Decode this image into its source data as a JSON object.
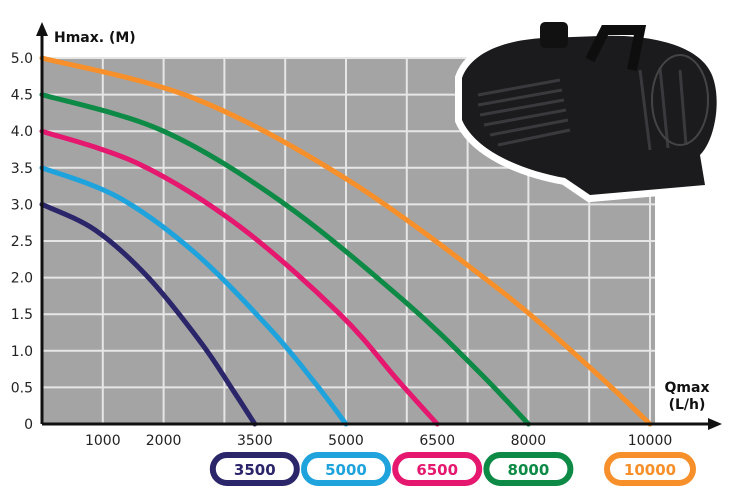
{
  "chart_data": {
    "type": "line",
    "title": "",
    "xlabel": "Qmax\n(L/h)",
    "xlabel_lines": [
      "Qmax",
      "(L/h)"
    ],
    "ylabel": "Hmax. (M)",
    "xlim": [
      0,
      10000
    ],
    "ylim": [
      0,
      5.0
    ],
    "grid": true,
    "background": "#a4a4a4",
    "x_ticks": [
      "1000",
      "2000",
      "3500",
      "5000",
      "6500",
      "8000",
      "10000"
    ],
    "y_ticks": [
      "0",
      "0.5",
      "1.0",
      "1.5",
      "2.0",
      "2.5",
      "3.0",
      "3.5",
      "4.0",
      "4.5",
      "5.0"
    ],
    "legend_placement": "bottom",
    "series": [
      {
        "name": "3500",
        "color": "#2b2569",
        "x": [
          0,
          875,
          1750,
          2625,
          3150,
          3500
        ],
        "y": [
          3.0,
          2.65,
          2.0,
          1.1,
          0.45,
          0
        ]
      },
      {
        "name": "5000",
        "color": "#1fa3dd",
        "x": [
          0,
          1250,
          2500,
          3750,
          4500,
          5000
        ],
        "y": [
          3.5,
          3.1,
          2.35,
          1.3,
          0.55,
          0
        ]
      },
      {
        "name": "6500",
        "color": "#e5176f",
        "x": [
          0,
          1600,
          3250,
          4900,
          5850,
          6500
        ],
        "y": [
          4.0,
          3.55,
          2.7,
          1.5,
          0.6,
          0
        ]
      },
      {
        "name": "8000",
        "color": "#0d8a45",
        "x": [
          0,
          2000,
          4000,
          6000,
          7200,
          8000
        ],
        "y": [
          4.5,
          4.0,
          3.0,
          1.65,
          0.7,
          0
        ]
      },
      {
        "name": "10000",
        "color": "#f7902a",
        "x": [
          0,
          2500,
          5000,
          7500,
          9000,
          10000
        ],
        "y": [
          5.0,
          4.45,
          3.35,
          1.85,
          0.78,
          0
        ]
      }
    ]
  },
  "image": {
    "subject": "pond-pump-photo"
  }
}
